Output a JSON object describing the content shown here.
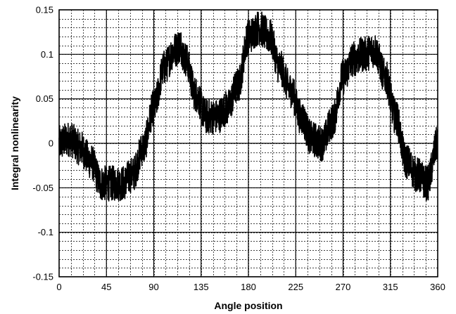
{
  "chart_data": {
    "type": "line",
    "title": "",
    "xlabel": "Angle position",
    "ylabel": "Integral nonlinearity",
    "xlim": [
      0,
      360
    ],
    "ylim": [
      -0.15,
      0.15
    ],
    "x_ticks": [
      "0",
      "45",
      "90",
      "135",
      "180",
      "225",
      "270",
      "315",
      "360"
    ],
    "y_ticks": [
      "0.15",
      "0.1",
      "0.05",
      "0",
      "-0.05",
      "-0.1",
      "-0.15"
    ],
    "grid": {
      "major": true,
      "minor": true,
      "x_minor_step": 11.25,
      "y_minor_step": 0.01
    },
    "series": [
      {
        "name": "",
        "color": "#000000",
        "noise_amplitude": 0.02,
        "points": [
          {
            "x": 0,
            "y": 0.0
          },
          {
            "x": 10,
            "y": 0.005
          },
          {
            "x": 20,
            "y": -0.005
          },
          {
            "x": 30,
            "y": -0.02
          },
          {
            "x": 40,
            "y": -0.045
          },
          {
            "x": 50,
            "y": -0.045
          },
          {
            "x": 60,
            "y": -0.045
          },
          {
            "x": 70,
            "y": -0.035
          },
          {
            "x": 80,
            "y": -0.005
          },
          {
            "x": 90,
            "y": 0.04
          },
          {
            "x": 100,
            "y": 0.085
          },
          {
            "x": 110,
            "y": 0.105
          },
          {
            "x": 115,
            "y": 0.11
          },
          {
            "x": 120,
            "y": 0.095
          },
          {
            "x": 130,
            "y": 0.055
          },
          {
            "x": 140,
            "y": 0.03
          },
          {
            "x": 150,
            "y": 0.03
          },
          {
            "x": 160,
            "y": 0.04
          },
          {
            "x": 170,
            "y": 0.065
          },
          {
            "x": 180,
            "y": 0.12
          },
          {
            "x": 190,
            "y": 0.13
          },
          {
            "x": 200,
            "y": 0.12
          },
          {
            "x": 210,
            "y": 0.085
          },
          {
            "x": 220,
            "y": 0.06
          },
          {
            "x": 230,
            "y": 0.03
          },
          {
            "x": 240,
            "y": 0.005
          },
          {
            "x": 250,
            "y": 0.0
          },
          {
            "x": 260,
            "y": 0.025
          },
          {
            "x": 270,
            "y": 0.075
          },
          {
            "x": 280,
            "y": 0.095
          },
          {
            "x": 290,
            "y": 0.1
          },
          {
            "x": 300,
            "y": 0.105
          },
          {
            "x": 310,
            "y": 0.075
          },
          {
            "x": 320,
            "y": 0.03
          },
          {
            "x": 330,
            "y": -0.02
          },
          {
            "x": 340,
            "y": -0.035
          },
          {
            "x": 350,
            "y": -0.045
          },
          {
            "x": 360,
            "y": 0.0
          }
        ]
      }
    ]
  }
}
